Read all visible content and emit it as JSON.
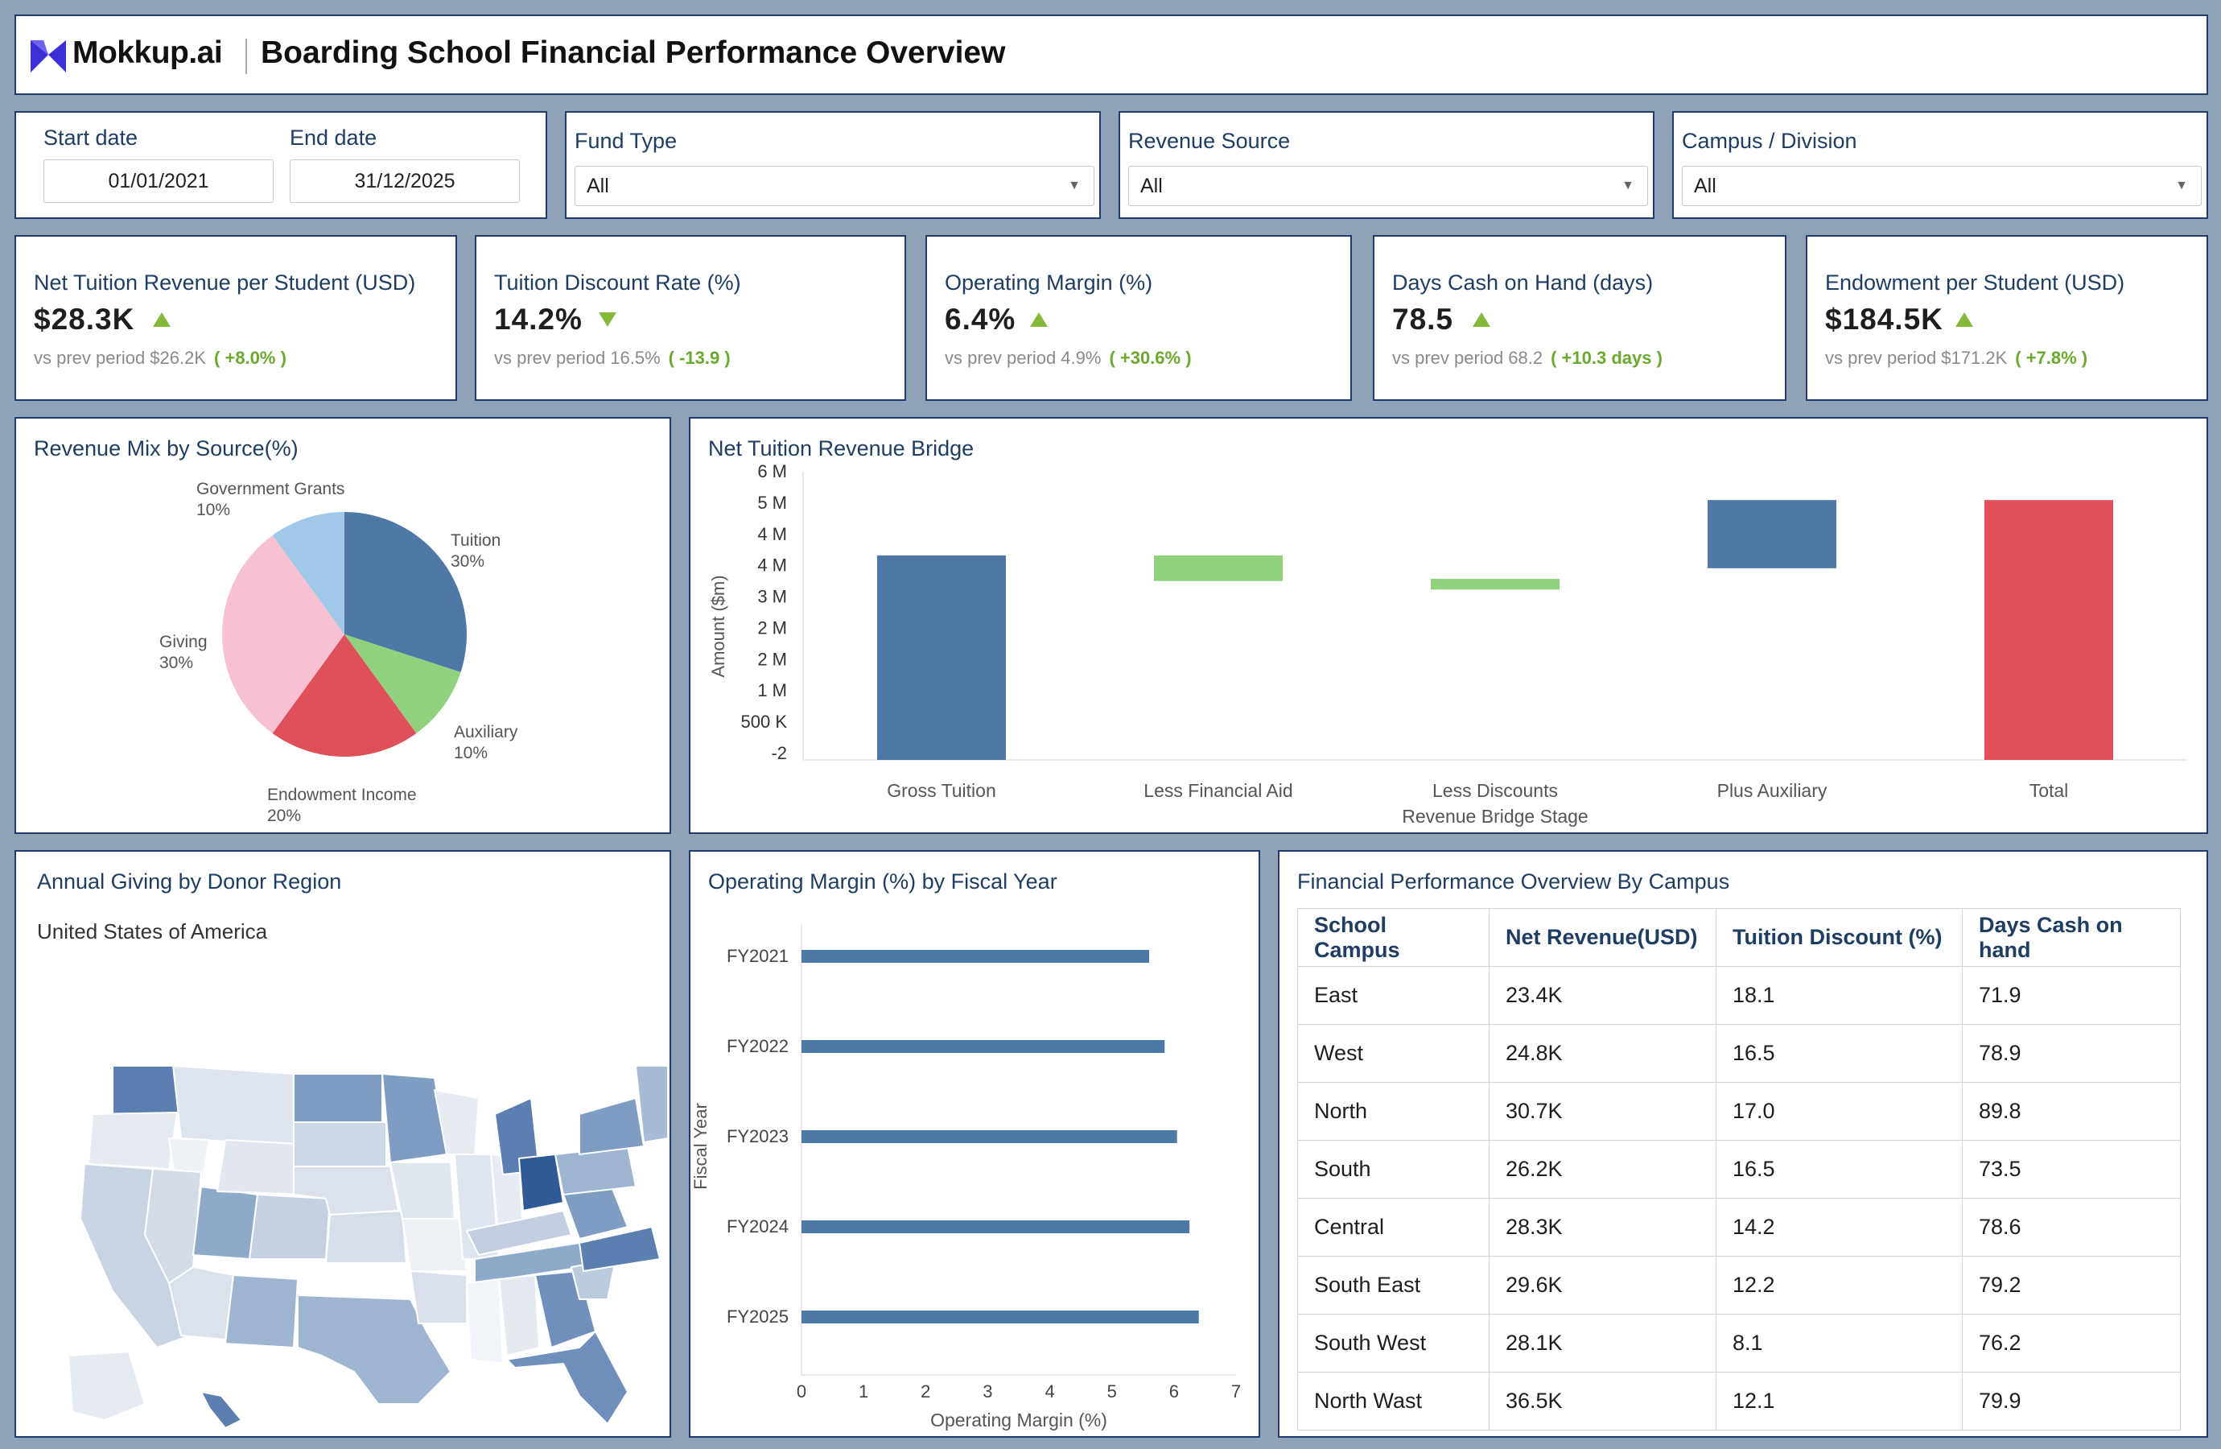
{
  "header": {
    "brand": "Mokkup.ai",
    "title": "Boarding School Financial Performance Overview"
  },
  "filters": {
    "start_label": "Start date",
    "start_value": "01/01/2021",
    "end_label": "End date",
    "end_value": "31/12/2025",
    "fund_type_label": "Fund Type",
    "fund_type_value": "All",
    "revenue_source_label": "Revenue Source",
    "revenue_source_value": "All",
    "campus_label": "Campus / Division",
    "campus_value": "All"
  },
  "kpis": [
    {
      "title": "Net Tuition Revenue per Student (USD)",
      "value": "$28.3K",
      "direction": "up",
      "prev": "vs prev period $26.2K",
      "change": "( +8.0% )"
    },
    {
      "title": "Tuition Discount Rate (%)",
      "value": "14.2%",
      "direction": "down",
      "prev": "vs prev period 16.5%",
      "change": "( -13.9 )"
    },
    {
      "title": "Operating Margin (%)",
      "value": "6.4%",
      "direction": "up",
      "prev": "vs prev period 4.9%",
      "change": "( +30.6% )"
    },
    {
      "title": "Days Cash on Hand (days)",
      "value": "78.5",
      "direction": "up",
      "prev": "vs prev period 68.2",
      "change": "( +10.3 days )"
    },
    {
      "title": "Endowment per Student (USD)",
      "value": "$184.5K",
      "direction": "up",
      "prev": "vs prev period $171.2K",
      "change": "( +7.8% )"
    }
  ],
  "revenue_mix": {
    "title": "Revenue Mix by Source(%)"
  },
  "bridge": {
    "title": "Net Tuition Revenue Bridge"
  },
  "map": {
    "title": "Annual Giving by Donor Region",
    "subtitle": "United States of America"
  },
  "margin": {
    "title": "Operating Margin (%) by Fiscal Year"
  },
  "table": {
    "title": "Financial Performance Overview By Campus",
    "headers": [
      "School Campus",
      "Net Revenue(USD)",
      "Tuition Discount (%)",
      "Days Cash on hand"
    ],
    "rows": [
      [
        "East",
        "23.4K",
        "18.1",
        "71.9"
      ],
      [
        "West",
        "24.8K",
        "16.5",
        "78.9"
      ],
      [
        "North",
        "30.7K",
        "17.0",
        "89.8"
      ],
      [
        "South",
        "26.2K",
        "16.5",
        "73.5"
      ],
      [
        "Central",
        "28.3K",
        "14.2",
        "78.6"
      ],
      [
        "South East",
        "29.6K",
        "12.2",
        "79.2"
      ],
      [
        "South West",
        "28.1K",
        "8.1",
        "76.2"
      ],
      [
        "North Wast",
        "36.5K",
        "12.1",
        "79.9"
      ]
    ]
  },
  "colors": {
    "primary_blue": "#4e79a7",
    "light_green": "#8fd17c",
    "red": "#e05059",
    "pink": "#f7c1d3",
    "light_blue": "#a0c8e8",
    "up_green": "#84b93c",
    "border": "#1f3a6e"
  },
  "chart_data": [
    {
      "type": "pie",
      "labels": [
        "Tuition",
        "Auxiliary",
        "Endowment Income",
        "Giving",
        "Government Grants"
      ],
      "values": [
        30,
        10,
        20,
        30,
        10
      ],
      "colors": [
        "#4e79a7",
        "#8fd17c",
        "#e05059",
        "#f7c1d3",
        "#a0c8e8"
      ]
    },
    {
      "type": "bar",
      "subtype": "waterfall",
      "categories": [
        "Gross Tuition",
        "Less Financial Aid",
        "Less Discounts",
        "Plus Auxiliary",
        "Total"
      ],
      "base": [
        0,
        4.2,
        4.0,
        4.5,
        0
      ],
      "top": [
        4.8,
        4.8,
        4.25,
        6.1,
        6.1
      ],
      "colors": [
        "#4e79a7",
        "#8fd17c",
        "#8fd17c",
        "#4e79a7",
        "#e05059"
      ],
      "xlabel": "Revenue Bridge Stage",
      "ylabel": "Amount ($m)",
      "yticks": [
        "-2",
        "500 K",
        "1 M",
        "2 M",
        "2 M",
        "3 M",
        "4 M",
        "4 M",
        "5 M",
        "6 M"
      ],
      "ylim": [
        0,
        6.5
      ]
    },
    {
      "type": "bar",
      "orientation": "horizontal",
      "categories": [
        "FY2021",
        "FY2022",
        "FY2023",
        "FY2024",
        "FY2025"
      ],
      "values": [
        5.6,
        5.85,
        6.05,
        6.25,
        6.4
      ],
      "xlabel": "Operating Margin (%)",
      "ylabel": "Fiscal Year",
      "xlim": [
        0,
        7
      ],
      "xticks": [
        "0",
        "1",
        "2",
        "3",
        "4",
        "5",
        "6",
        "7"
      ]
    }
  ]
}
